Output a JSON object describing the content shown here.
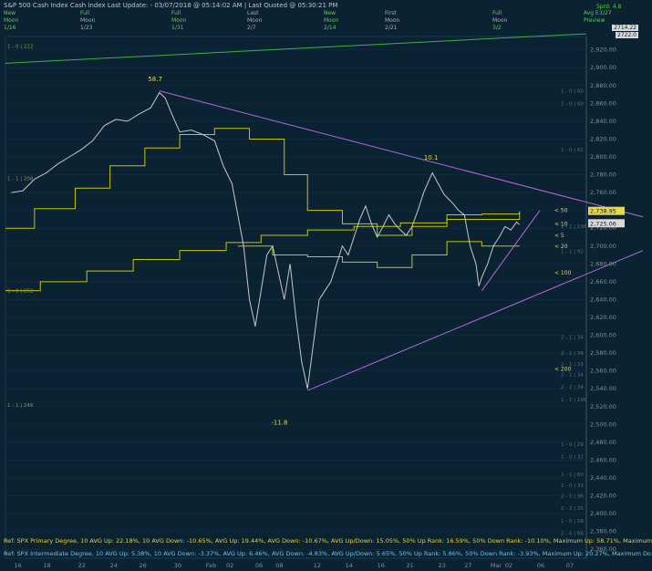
{
  "header": {
    "title": "S&P 500 Cash Index  Cash Index  Last Update: - 03/07/2018 @ 05:14:02 AM | Last Quoted @ 05:30:21 PM",
    "row1": [
      "New",
      "Full",
      "Full",
      "Last",
      "New",
      "First",
      "Full",
      "Avg E"
    ],
    "row2": [
      "Moon",
      "Moon",
      "Moon",
      "Moon",
      "Moon",
      "Moon",
      "Moon",
      "Preview"
    ],
    "row3": [
      "1/16",
      "1/23",
      "1/31",
      "2/7",
      "2/14",
      "2/21",
      "3/2"
    ],
    "right_top": [
      "Sprd: 4.8",
      "3/27"
    ],
    "right_tags": [
      "2714.22",
      "2722.0"
    ]
  },
  "chart_data": {
    "type": "line",
    "title": "S&P 500 Cash Index",
    "xlabel": "",
    "ylabel": "",
    "ylim": [
      2350,
      2935
    ],
    "y_ticks": [
      2360,
      2380,
      2400,
      2420,
      2440,
      2460,
      2480,
      2500,
      2520,
      2540,
      2560,
      2580,
      2600,
      2620,
      2640,
      2660,
      2680,
      2700,
      2720,
      2740,
      2760,
      2780,
      2800,
      2820,
      2840,
      2860,
      2880,
      2900,
      2920
    ],
    "y_tick_labels": [
      "2,360.00",
      "2,380.00",
      "2,400.00",
      "2,420.00",
      "2,440.00",
      "2,460.00",
      "2,480.00",
      "2,500.00",
      "2,520.00",
      "2,540.00",
      "2,560.00",
      "2,580.00",
      "2,600.00",
      "2,620.00",
      "2,640.00",
      "2,660.00",
      "2,680.00",
      "2,700.00",
      "2,720.00",
      "2,740.00",
      "2,760.00",
      "2,780.00",
      "2,800.00",
      "2,820.00",
      "2,840.00",
      "2,860.00",
      "2,880.00",
      "2,900.00",
      "2,920.00"
    ],
    "x_tick_labels": [
      "16",
      "18",
      "22",
      "24",
      "26",
      "30",
      "Feb",
      "02",
      "06",
      "08",
      "12",
      "14",
      "16",
      "21",
      "23",
      "27",
      "Mar",
      "02",
      "06",
      "07"
    ],
    "price_path": [
      [
        0.01,
        2760
      ],
      [
        0.03,
        2762
      ],
      [
        0.05,
        2775
      ],
      [
        0.07,
        2782
      ],
      [
        0.09,
        2792
      ],
      [
        0.11,
        2800
      ],
      [
        0.13,
        2808
      ],
      [
        0.15,
        2818
      ],
      [
        0.17,
        2835
      ],
      [
        0.19,
        2842
      ],
      [
        0.21,
        2840
      ],
      [
        0.23,
        2848
      ],
      [
        0.25,
        2855
      ],
      [
        0.265,
        2872
      ],
      [
        0.275,
        2866
      ],
      [
        0.285,
        2850
      ],
      [
        0.3,
        2828
      ],
      [
        0.32,
        2830
      ],
      [
        0.34,
        2825
      ],
      [
        0.36,
        2818
      ],
      [
        0.375,
        2790
      ],
      [
        0.39,
        2770
      ],
      [
        0.4,
        2735
      ],
      [
        0.41,
        2700
      ],
      [
        0.42,
        2640
      ],
      [
        0.43,
        2610
      ],
      [
        0.44,
        2650
      ],
      [
        0.45,
        2690
      ],
      [
        0.46,
        2700
      ],
      [
        0.47,
        2670
      ],
      [
        0.48,
        2640
      ],
      [
        0.49,
        2680
      ],
      [
        0.5,
        2620
      ],
      [
        0.51,
        2570
      ],
      [
        0.52,
        2540
      ],
      [
        0.53,
        2590
      ],
      [
        0.54,
        2640
      ],
      [
        0.55,
        2650
      ],
      [
        0.56,
        2660
      ],
      [
        0.57,
        2680
      ],
      [
        0.58,
        2700
      ],
      [
        0.59,
        2690
      ],
      [
        0.6,
        2710
      ],
      [
        0.61,
        2730
      ],
      [
        0.62,
        2745
      ],
      [
        0.63,
        2725
      ],
      [
        0.64,
        2710
      ],
      [
        0.65,
        2722
      ],
      [
        0.66,
        2735
      ],
      [
        0.67,
        2725
      ],
      [
        0.68,
        2718
      ],
      [
        0.69,
        2712
      ],
      [
        0.7,
        2722
      ],
      [
        0.71,
        2740
      ],
      [
        0.72,
        2760
      ],
      [
        0.73,
        2775
      ],
      [
        0.735,
        2782
      ],
      [
        0.745,
        2770
      ],
      [
        0.755,
        2758
      ],
      [
        0.77,
        2748
      ],
      [
        0.78,
        2740
      ],
      [
        0.79,
        2735
      ],
      [
        0.8,
        2700
      ],
      [
        0.81,
        2680
      ],
      [
        0.815,
        2655
      ],
      [
        0.82,
        2665
      ],
      [
        0.83,
        2680
      ],
      [
        0.84,
        2700
      ],
      [
        0.85,
        2710
      ],
      [
        0.86,
        2722
      ],
      [
        0.87,
        2718
      ],
      [
        0.88,
        2727
      ],
      [
        0.885,
        2724
      ]
    ],
    "ma_lines": [
      {
        "label": "< 50",
        "end_value": 2738.95
      },
      {
        "label": "< 10",
        "end_value": 2725.06
      },
      {
        "label": "< 5",
        "end_value": 2712
      },
      {
        "label": "< 20",
        "end_value": 2700
      },
      {
        "label": "< 100",
        "end_value": 2670
      },
      {
        "label": "< 200",
        "end_value": 2562
      }
    ],
    "price_tags": [
      "2,738.95",
      "2,725.06"
    ],
    "annotations": [
      {
        "text": "58.7",
        "x": 0.258,
        "y": 2885
      },
      {
        "text": "10.1",
        "x": 0.733,
        "y": 2797
      },
      {
        "text": "-11.8",
        "x": 0.47,
        "y": 2500
      }
    ],
    "left_labels": [
      "1 - 0 | 222",
      "1 - 1 | 208",
      "1 - 0 | 252",
      "1 - 1 | 246"
    ],
    "right_labels": [
      "1 - 0 | 60",
      "1 - 0 | 60",
      "1 - 0 | 62",
      "1 - 1 | 196",
      "1 - 1 | 92",
      "2 - 1 | 34",
      "2 - 1 | 34",
      "2 - 1 | 33",
      "2 - 1 | 34",
      "2 - 2 | 34",
      "1 - 1 | 196",
      "1 - 0 | 29",
      "1 - 0 | 32",
      "1 - 1 | 60",
      "1 - 0 | 33",
      "2 - 1 | 36",
      "2 - 2 | 35",
      "1 - 0 | 58",
      "1 - 0 | 66"
    ]
  },
  "footer": {
    "line1": "Ref: SPX Primary Degree, 10 AVG Up: 22.18%, 10 AVG Down: -10.65%, AVG Up: 19.44%, AVG Down: -10.67%, AVG Up/Down: 15.05%, 50%  Up Rank: 16.59%, 50% Down Rank: -10.10%, Maximum Up: 58.71%, Maximum",
    "line2": "Ref: SPX Intermediate Degree, 10 AVG Up: 5.38%, 10 AVG Down: -3.37%, AVG Up: 6.46%, AVG Down: -4.83%, AVG Up/Down: 5.65%, 50%  Up Rank: 5.86%, 50% Down Rank: -3.93%, Maximum Up: 20.27%, Maximum Do"
  },
  "colors": {
    "background": "#0b2233",
    "price": "#c8c8c8",
    "ma": "#c8c400",
    "trend": "#b36ad8",
    "tick_text": "#7f8f98",
    "gridline": "#12324a",
    "header_green": "#5ad04a"
  }
}
